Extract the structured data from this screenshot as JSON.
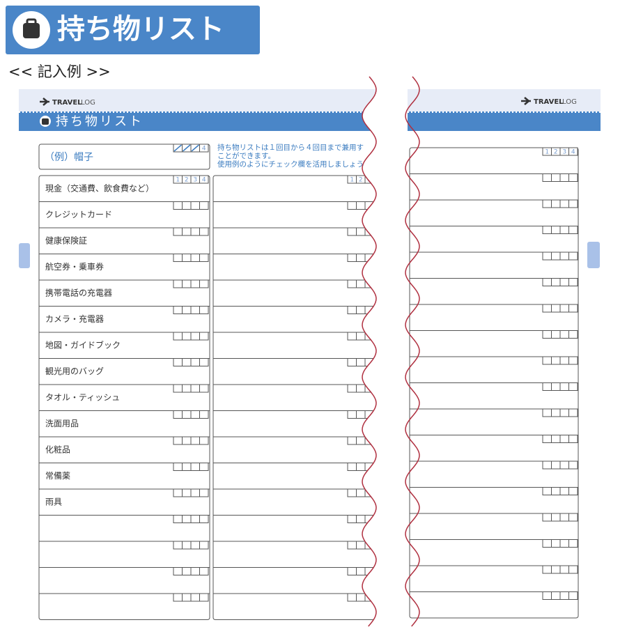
{
  "header": {
    "title": "持ち物リスト",
    "subtitle": "<< 記入例 >>"
  },
  "left_page": {
    "brand": {
      "bold": "TRAVEL",
      "light": "LOG"
    },
    "title": "持ち物リスト",
    "example": "（例）帽子",
    "note": [
      "持ち物リストは１回目から４回目まで兼用す",
      "ことができます。",
      "使用例のようにチェック欄を活用しましょう"
    ],
    "check_numbers": [
      "1",
      "2",
      "3",
      "4"
    ],
    "items": [
      "現金（交通費、飲食費など）",
      "クレジットカード",
      "健康保険証",
      "航空券・乗車券",
      "携帯電話の充電器",
      "カメラ・充電器",
      "地図・ガイドブック",
      "観光用のバッグ",
      "タオル・ティッシュ",
      "洗面用品",
      "化粧品",
      "常備薬",
      "雨具"
    ]
  },
  "right_page": {
    "brand": {
      "bold": "TRAVEL",
      "light": "LOG"
    }
  }
}
